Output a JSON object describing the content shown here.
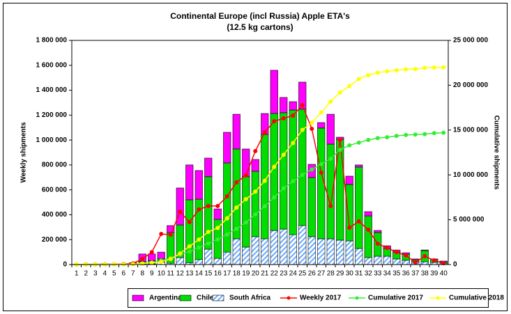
{
  "chart_data": {
    "type": "bar",
    "stacked": true,
    "title": "Continental Europe (incl Russia) Apple ETA's",
    "subtitle": "(12.5 kg cartons)",
    "y_label": "Weekly shipments",
    "y2_label": "Cumulative shipments",
    "categories": [
      "1",
      "2",
      "3",
      "4",
      "5",
      "6",
      "7",
      "8",
      "9",
      "10",
      "11",
      "12",
      "13",
      "14",
      "15",
      "16",
      "17",
      "18",
      "19",
      "20",
      "21",
      "22",
      "23",
      "24",
      "25",
      "26",
      "27",
      "28",
      "29",
      "30",
      "31",
      "32",
      "33",
      "34",
      "35",
      "36",
      "37",
      "38",
      "39",
      "40"
    ],
    "ylim": [
      0,
      1800000
    ],
    "yticks": [
      0,
      {
        "value": 200000,
        "label": "200 000"
      },
      {
        "value": 400000,
        "label": "400 000"
      },
      {
        "value": 600000,
        "label": "600 000"
      },
      {
        "value": 800000,
        "label": "800 000"
      },
      {
        "value": 1000000,
        "label": "1 000 000"
      },
      {
        "value": 1200000,
        "label": "1 200 000"
      },
      {
        "value": 1400000,
        "label": "1 400 000"
      },
      {
        "value": 1600000,
        "label": "1 600 000"
      },
      {
        "value": 1800000,
        "label": "1 800 000"
      }
    ],
    "y2lim": [
      0,
      25000000
    ],
    "y2ticks": [
      0,
      {
        "value": 5000000,
        "label": "5 000 000"
      },
      {
        "value": 10000000,
        "label": "10 000 000"
      },
      {
        "value": 15000000,
        "label": "15 000 000"
      },
      {
        "value": 20000000,
        "label": "20 000 000"
      },
      {
        "value": 25000000,
        "label": "25 000 000"
      }
    ],
    "grid": false,
    "legend": "bottom",
    "series": [
      {
        "name": "Argentina",
        "type": "bar",
        "color": "#ff00ff",
        "values": [
          2000,
          3000,
          2000,
          5000,
          3000,
          2000,
          10000,
          60000,
          55000,
          55000,
          56000,
          297000,
          280000,
          230000,
          150000,
          84000,
          246000,
          279000,
          223000,
          95000,
          168000,
          347000,
          123000,
          67000,
          218000,
          106000,
          44000,
          240000,
          17000,
          67000,
          17000,
          34000,
          17000,
          22000,
          17000,
          11000,
          6000,
          5000,
          6000,
          6000
        ]
      },
      {
        "name": "Chile",
        "type": "bar",
        "color": "#00dd00",
        "values": [
          0,
          0,
          0,
          0,
          0,
          0,
          3000,
          20000,
          25000,
          25000,
          247000,
          262000,
          505000,
          485000,
          582000,
          313000,
          716000,
          721000,
          565000,
          525000,
          838000,
          939000,
          934000,
          1001000,
          934000,
          475000,
          889000,
          760000,
          810000,
          453000,
          654000,
          335000,
          190000,
          62000,
          55000,
          50000,
          17000,
          90000,
          22000,
          11000
        ]
      },
      {
        "name": "South Africa",
        "type": "bar",
        "color": "#66aaff",
        "hatch": true,
        "values": [
          0,
          0,
          0,
          0,
          0,
          0,
          2000,
          5000,
          5000,
          20000,
          10000,
          56000,
          15000,
          40000,
          123000,
          50000,
          100000,
          207000,
          140000,
          224000,
          207000,
          274000,
          285000,
          240000,
          313000,
          224000,
          207000,
          207000,
          196000,
          190000,
          129000,
          56000,
          67000,
          67000,
          45000,
          34000,
          22000,
          22000,
          17000,
          11000
        ]
      },
      {
        "name": "Weekly 2017",
        "type": "line",
        "color": "#ff0000",
        "values": [
          1000,
          2000,
          2000,
          3000,
          3000,
          5000,
          10000,
          45000,
          100000,
          246000,
          240000,
          425000,
          341000,
          442000,
          470000,
          470000,
          548000,
          660000,
          716000,
          911000,
          1062000,
          1151000,
          1174000,
          1196000,
          1280000,
          1090000,
          738000,
          470000,
          1000000,
          296000,
          347000,
          280000,
          168000,
          134000,
          100000,
          73000,
          17000,
          67000,
          34000,
          11000
        ]
      },
      {
        "name": "Cumulative 2017",
        "type": "line",
        "axis": "y2",
        "color": "#33ee33",
        "values": [
          0,
          0,
          0,
          10000,
          20000,
          30000,
          50000,
          100000,
          200000,
          450000,
          700000,
          1100000,
          1450000,
          1900000,
          2350000,
          2800000,
          3350000,
          4000000,
          4700000,
          5600000,
          6500000,
          7500000,
          8500000,
          9300000,
          10000000,
          10600000,
          11200000,
          11800000,
          12800000,
          13300000,
          13600000,
          13900000,
          14100000,
          14200000,
          14350000,
          14450000,
          14500000,
          14550000,
          14650000,
          14700000
        ]
      },
      {
        "name": "Cumulative 2018",
        "type": "line",
        "axis": "y2",
        "color": "#ffff00",
        "values": [
          10000,
          10000,
          20000,
          20000,
          30000,
          40000,
          50000,
          120000,
          200000,
          300000,
          620000,
          1230000,
          2030000,
          2790000,
          3640000,
          4090000,
          5150000,
          6360000,
          7290000,
          8130000,
          9350000,
          10900000,
          12250000,
          13550000,
          15020000,
          15820000,
          16960000,
          18170000,
          19190000,
          19900000,
          20700000,
          21130000,
          21400000,
          21550000,
          21670000,
          21770000,
          21810000,
          21930000,
          21970000,
          22000000
        ]
      }
    ]
  }
}
